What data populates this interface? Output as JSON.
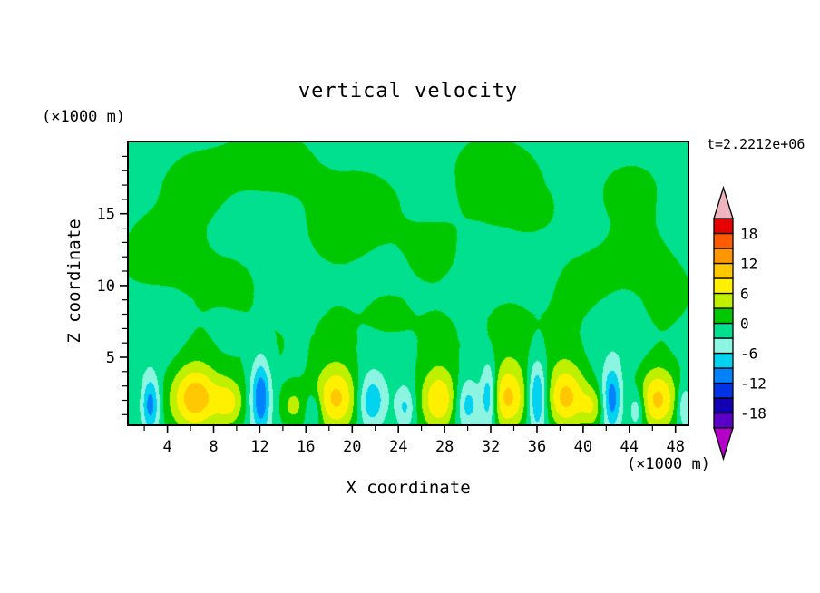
{
  "chart_data": {
    "type": "filled-contour",
    "title": "vertical velocity",
    "xlabel": "X coordinate",
    "ylabel": "Z coordinate",
    "x_axis_unit": "(×1000 m)",
    "z_axis_unit": "(×1000 m)",
    "time_annotation": "t=2.2212e+06",
    "xlim": [
      0.5,
      49.2
    ],
    "ylim": [
      0.2,
      20.1
    ],
    "x_ticks": [
      4,
      8,
      12,
      16,
      20,
      24,
      28,
      32,
      36,
      40,
      44,
      48
    ],
    "y_ticks": [
      5,
      10,
      15
    ],
    "x_minor_step": 2,
    "y_minor_step": 1,
    "level_min": -21,
    "level_max": 21,
    "level_step": 3,
    "palette": [
      "#5a00c8",
      "#1400b4",
      "#0032e6",
      "#0082ff",
      "#00d2f0",
      "#8cf5e1",
      "#00e08e",
      "#00c800",
      "#bef000",
      "#fff000",
      "#ffc800",
      "#ff9600",
      "#ff5a00",
      "#e60000"
    ],
    "under_color": "#b400c8",
    "over_color": "#f0b4be",
    "colorbar_labels": [
      {
        "v": 18,
        "t": "18"
      },
      {
        "v": 12,
        "t": "12"
      },
      {
        "v": 6,
        "t": "6"
      },
      {
        "v": 0,
        "t": "0"
      },
      {
        "v": -6,
        "t": "-6"
      },
      {
        "v": -12,
        "t": "-12"
      },
      {
        "v": -18,
        "t": "-18"
      }
    ],
    "legend_position": "right-colorbar",
    "grid": false,
    "field": {
      "background": -1.2,
      "wave_neg_scale": 0.62,
      "wave_damp_z": 5,
      "waves": [
        {
          "a": 0.9,
          "fx": 0.3,
          "px": 0.8,
          "fz": 0.5,
          "pz": 1.7
        },
        {
          "a": 0.7,
          "fx": 0.47,
          "px": 2.3,
          "fz": 0.28,
          "pz": 0.5
        },
        {
          "a": 0.55,
          "fx": 0.15,
          "px": 4.2,
          "fz": 0.75,
          "pz": 2.9
        }
      ],
      "blobs": [
        {
          "x": 6.3,
          "z": 2.0,
          "sx": 1.5,
          "sz": 1.6,
          "a": 11.5
        },
        {
          "x": 9.3,
          "z": 1.7,
          "sx": 0.9,
          "sz": 1.2,
          "a": 7.0
        },
        {
          "x": 14.8,
          "z": 1.5,
          "sx": 0.8,
          "sz": 1.0,
          "a": 5.0
        },
        {
          "x": 18.6,
          "z": 2.0,
          "sx": 1.4,
          "sz": 1.6,
          "a": 10.3
        },
        {
          "x": 27.6,
          "z": 1.9,
          "sx": 1.2,
          "sz": 1.5,
          "a": 9.3
        },
        {
          "x": 33.5,
          "z": 2.0,
          "sx": 1.3,
          "sz": 1.6,
          "a": 10.3
        },
        {
          "x": 38.6,
          "z": 2.0,
          "sx": 1.2,
          "sz": 1.5,
          "a": 9.8
        },
        {
          "x": 40.9,
          "z": 1.4,
          "sx": 0.7,
          "sz": 1.0,
          "a": 5.5
        },
        {
          "x": 46.6,
          "z": 1.9,
          "sx": 1.2,
          "sz": 1.5,
          "a": 9.8
        },
        {
          "x": 6.3,
          "z": 5.5,
          "sx": 1.6,
          "sz": 3.0,
          "a": 2.0
        },
        {
          "x": 18.6,
          "z": 5.5,
          "sx": 1.6,
          "sz": 3.0,
          "a": 2.0
        },
        {
          "x": 27.6,
          "z": 5.0,
          "sx": 1.4,
          "sz": 2.6,
          "a": 1.7
        },
        {
          "x": 33.5,
          "z": 5.5,
          "sx": 1.6,
          "sz": 3.0,
          "a": 2.0
        },
        {
          "x": 38.6,
          "z": 5.0,
          "sx": 1.4,
          "sz": 2.6,
          "a": 1.7
        },
        {
          "x": 46.6,
          "z": 5.2,
          "sx": 1.4,
          "sz": 2.8,
          "a": 1.8
        },
        {
          "x": 2.4,
          "z": 1.6,
          "sx": 0.55,
          "sz": 1.4,
          "a": -10.0
        },
        {
          "x": 12.0,
          "z": 2.2,
          "sx": 0.6,
          "sz": 1.9,
          "a": -11.0
        },
        {
          "x": 16.6,
          "z": 1.2,
          "sx": 0.5,
          "sz": 0.9,
          "a": -5.0
        },
        {
          "x": 21.6,
          "z": 1.8,
          "sx": 0.9,
          "sz": 1.4,
          "a": -8.0
        },
        {
          "x": 24.6,
          "z": 1.4,
          "sx": 0.6,
          "sz": 1.1,
          "a": -6.0
        },
        {
          "x": 30.0,
          "z": 1.6,
          "sx": 0.8,
          "sz": 1.3,
          "a": -7.0
        },
        {
          "x": 31.9,
          "z": 2.2,
          "sx": 0.5,
          "sz": 1.7,
          "a": -10.0
        },
        {
          "x": 36.1,
          "z": 2.2,
          "sx": 0.6,
          "sz": 1.8,
          "a": -10.5
        },
        {
          "x": 42.6,
          "z": 2.0,
          "sx": 0.6,
          "sz": 1.6,
          "a": -10.0
        },
        {
          "x": 44.8,
          "z": 1.3,
          "sx": 0.5,
          "sz": 1.0,
          "a": -6.0
        },
        {
          "x": 48.9,
          "z": 1.5,
          "sx": 0.5,
          "sz": 1.1,
          "a": -6.0
        },
        {
          "x": 6.0,
          "z": 16.5,
          "sx": 3.0,
          "sz": 2.2,
          "a": 2.0
        },
        {
          "x": 13.0,
          "z": 18.5,
          "sx": 2.5,
          "sz": 1.8,
          "a": 1.9
        },
        {
          "x": 22.0,
          "z": 17.0,
          "sx": 3.0,
          "sz": 2.0,
          "a": 2.0
        },
        {
          "x": 31.0,
          "z": 18.5,
          "sx": 2.2,
          "sz": 1.6,
          "a": 1.9
        },
        {
          "x": 36.0,
          "z": 15.0,
          "sx": 2.6,
          "sz": 2.0,
          "a": 2.0
        },
        {
          "x": 44.0,
          "z": 16.5,
          "sx": 2.6,
          "sz": 2.0,
          "a": 2.0
        },
        {
          "x": 27.0,
          "z": 12.0,
          "sx": 2.2,
          "sz": 1.8,
          "a": 1.9
        },
        {
          "x": 10.0,
          "z": 10.5,
          "sx": 2.0,
          "sz": 1.8,
          "a": 1.8
        },
        {
          "x": 18.0,
          "z": 13.5,
          "sx": 2.0,
          "sz": 1.6,
          "a": 1.7
        },
        {
          "x": 40.0,
          "z": 10.0,
          "sx": 2.0,
          "sz": 1.8,
          "a": 1.8
        },
        {
          "x": 47.5,
          "z": 9.0,
          "sx": 1.8,
          "sz": 1.6,
          "a": 1.7
        },
        {
          "x": 2.0,
          "z": 13.0,
          "sx": 1.6,
          "sz": 1.5,
          "a": 1.8
        },
        {
          "x": 23.0,
          "z": 8.0,
          "sx": 1.8,
          "sz": 1.5,
          "a": 1.7
        }
      ]
    }
  }
}
